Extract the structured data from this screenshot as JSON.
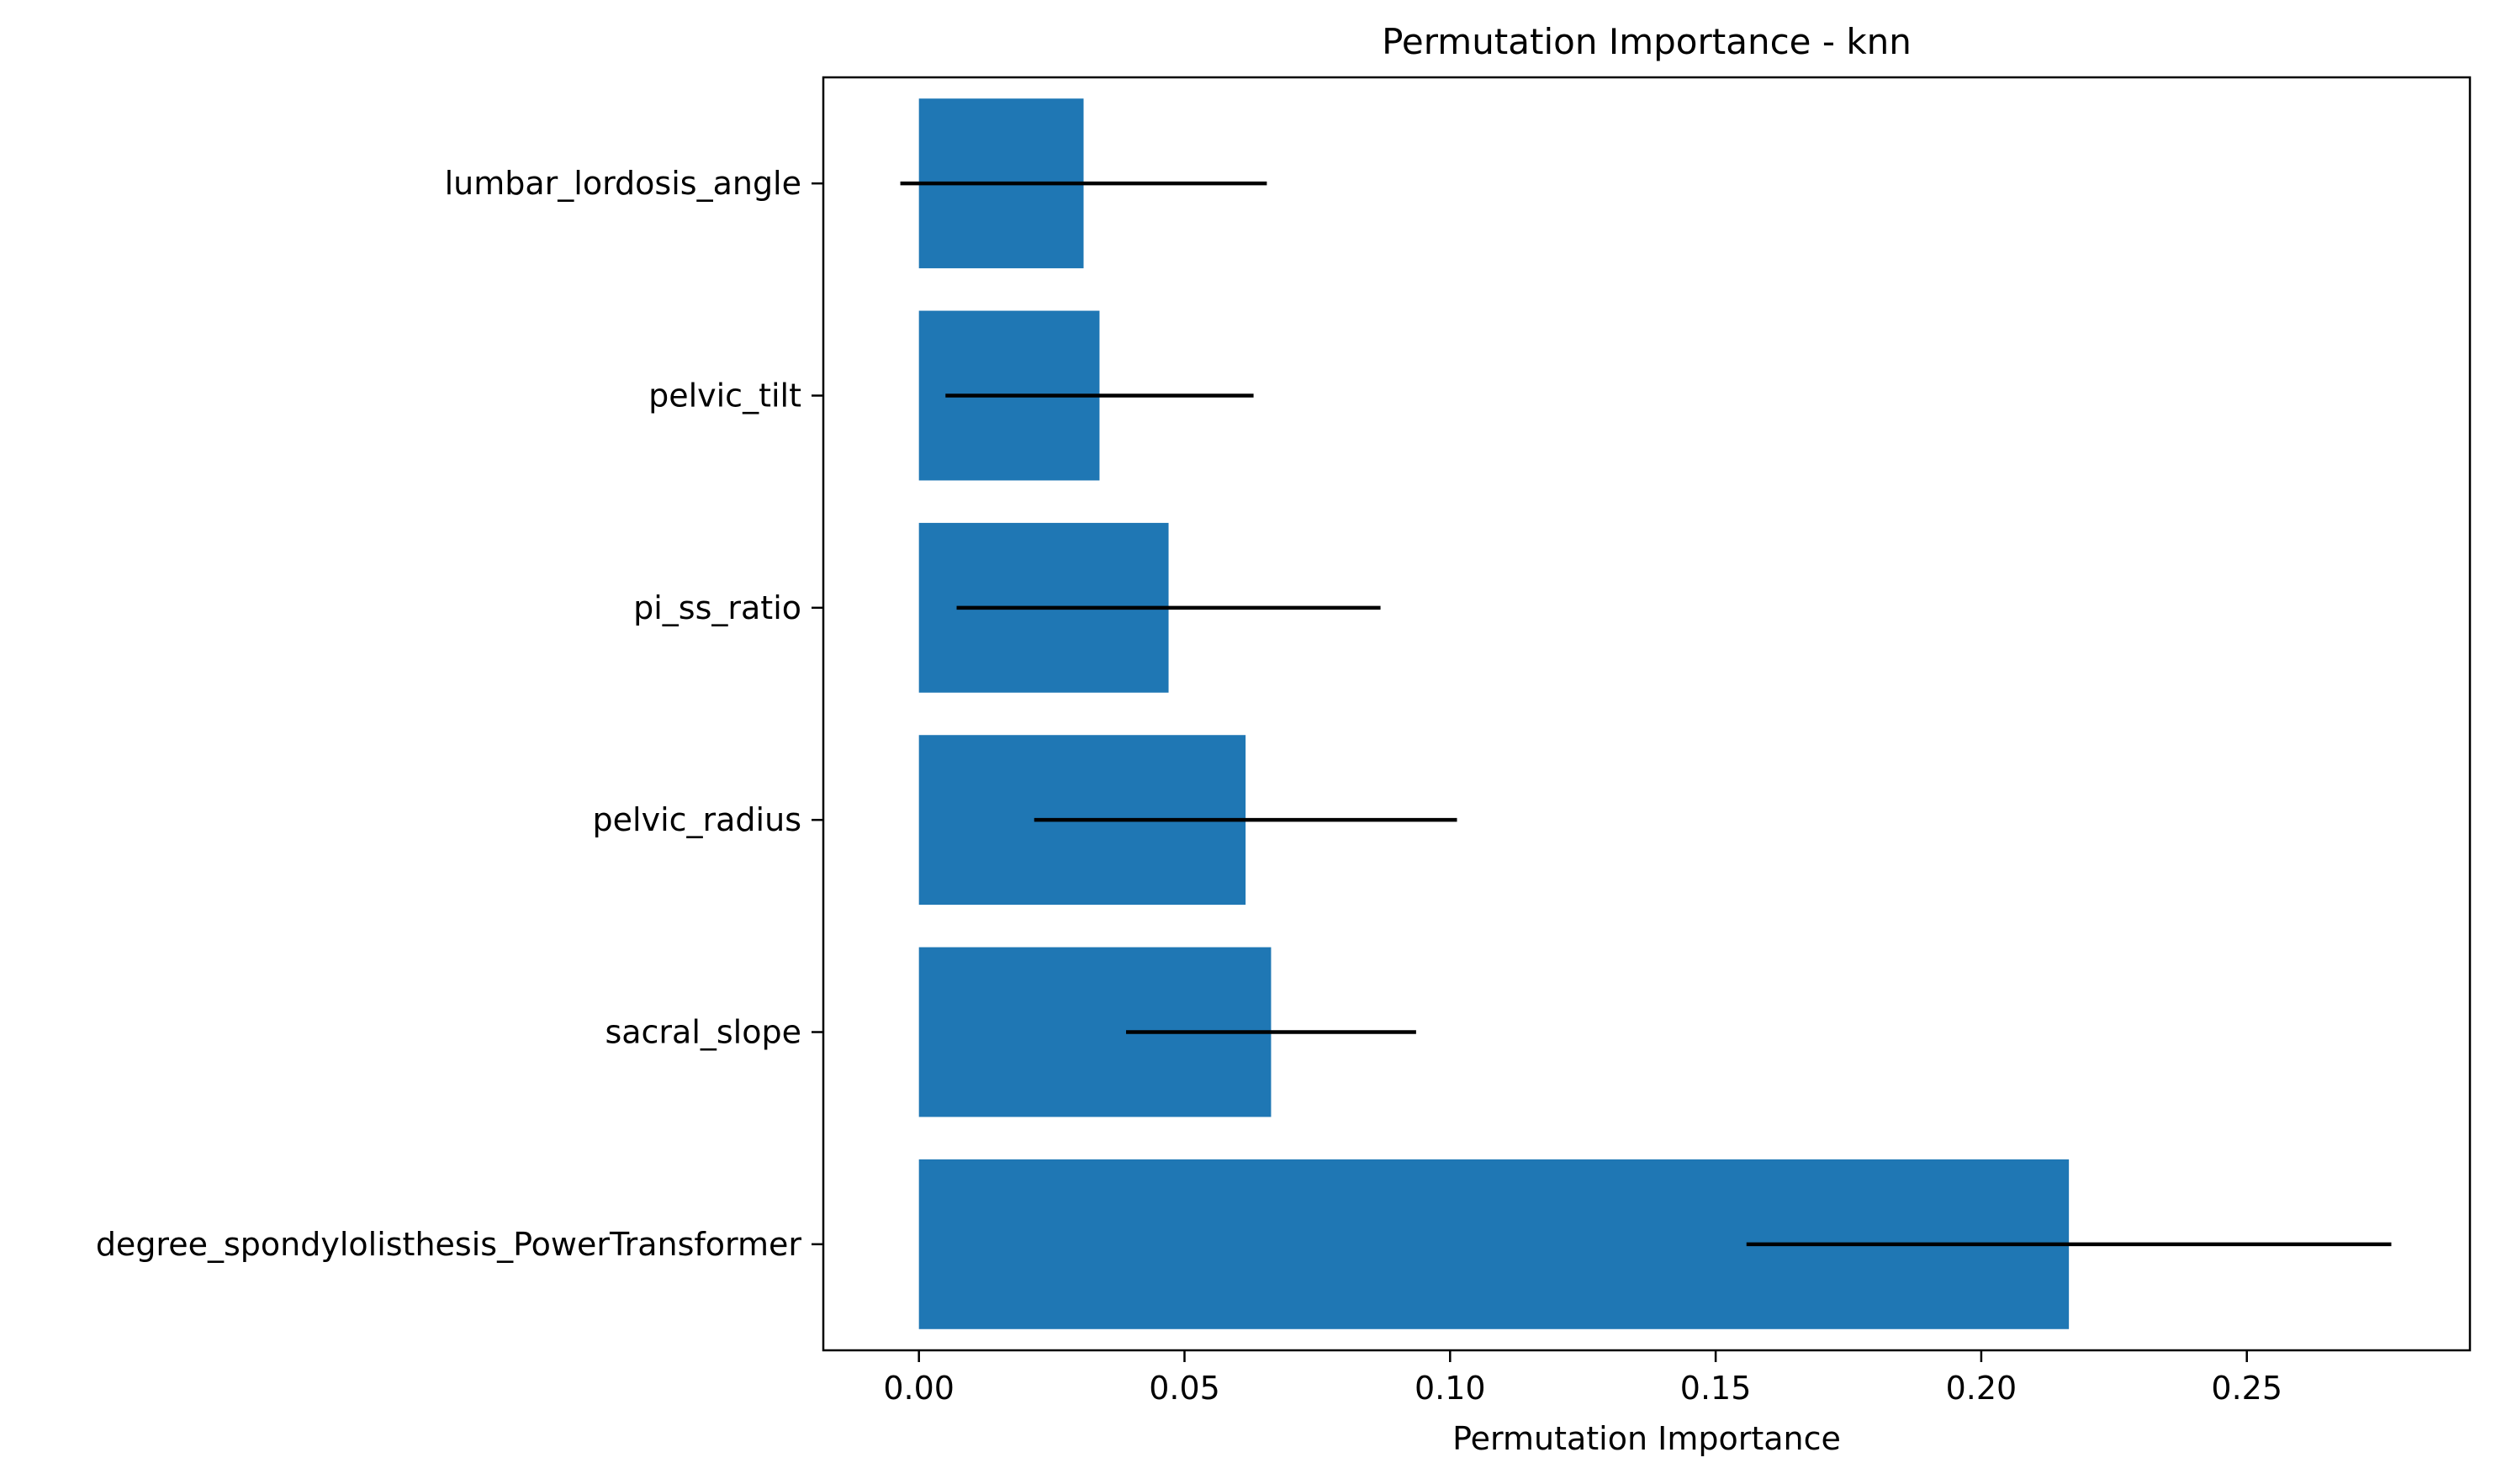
{
  "colors": {
    "bar": "#1f77b4",
    "error": "#000000",
    "frame": "#000000"
  },
  "chart_data": {
    "type": "bar",
    "orientation": "horizontal",
    "title": "Permutation Importance - knn",
    "xlabel": "Permutation Importance",
    "ylabel": "",
    "xlim": [
      -0.018,
      0.292
    ],
    "grid": false,
    "x_ticks": [
      0.0,
      0.05,
      0.1,
      0.15,
      0.2,
      0.25
    ],
    "x_tick_labels": [
      "0.00",
      "0.05",
      "0.10",
      "0.15",
      "0.20",
      "0.25"
    ],
    "categories": [
      "lumbar_lordosis_angle",
      "pelvic_tilt",
      "pi_ss_ratio",
      "pelvic_radius",
      "sacral_slope",
      "degree_spondylolisthesis_PowerTransformer"
    ],
    "values": [
      0.031,
      0.034,
      0.047,
      0.0615,
      0.0663,
      0.2165
    ],
    "errors": [
      0.0345,
      0.029,
      0.0399,
      0.0398,
      0.0273,
      0.0607
    ]
  }
}
